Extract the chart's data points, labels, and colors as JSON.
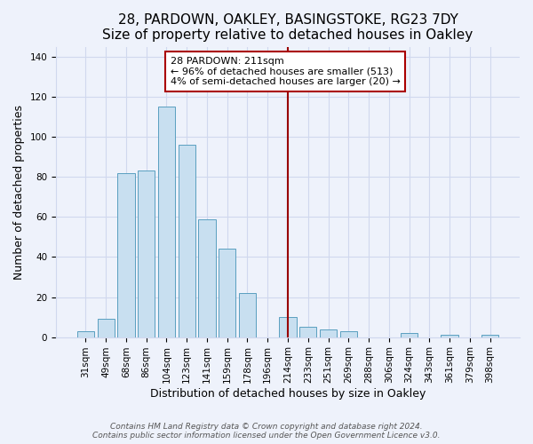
{
  "title": "28, PARDOWN, OAKLEY, BASINGSTOKE, RG23 7DY",
  "subtitle": "Size of property relative to detached houses in Oakley",
  "xlabel": "Distribution of detached houses by size in Oakley",
  "ylabel": "Number of detached properties",
  "bar_labels": [
    "31sqm",
    "49sqm",
    "68sqm",
    "86sqm",
    "104sqm",
    "123sqm",
    "141sqm",
    "159sqm",
    "178sqm",
    "196sqm",
    "214sqm",
    "233sqm",
    "251sqm",
    "269sqm",
    "288sqm",
    "306sqm",
    "324sqm",
    "343sqm",
    "361sqm",
    "379sqm",
    "398sqm"
  ],
  "bar_values": [
    3,
    9,
    82,
    83,
    115,
    96,
    59,
    44,
    22,
    0,
    10,
    5,
    4,
    3,
    0,
    0,
    2,
    0,
    1,
    0,
    1
  ],
  "bar_color": "#c8dff0",
  "bar_edge_color": "#5a9fc0",
  "vline_x_idx": 10,
  "vline_color": "#990000",
  "annotation_title": "28 PARDOWN: 211sqm",
  "annotation_line1": "← 96% of detached houses are smaller (513)",
  "annotation_line2": "4% of semi-detached houses are larger (20) →",
  "annotation_box_color": "#ffffff",
  "annotation_box_edge_color": "#aa0000",
  "ylim": [
    0,
    145
  ],
  "yticks": [
    0,
    20,
    40,
    60,
    80,
    100,
    120,
    140
  ],
  "footer1": "Contains HM Land Registry data © Crown copyright and database right 2024.",
  "footer2": "Contains public sector information licensed under the Open Government Licence v3.0.",
  "bg_color": "#eef2fb",
  "plot_bg_color": "#eef2fb",
  "grid_color": "#d0d8ee",
  "title_fontsize": 11,
  "subtitle_fontsize": 10,
  "axis_label_fontsize": 9,
  "tick_fontsize": 7.5,
  "footer_fontsize": 6.5
}
